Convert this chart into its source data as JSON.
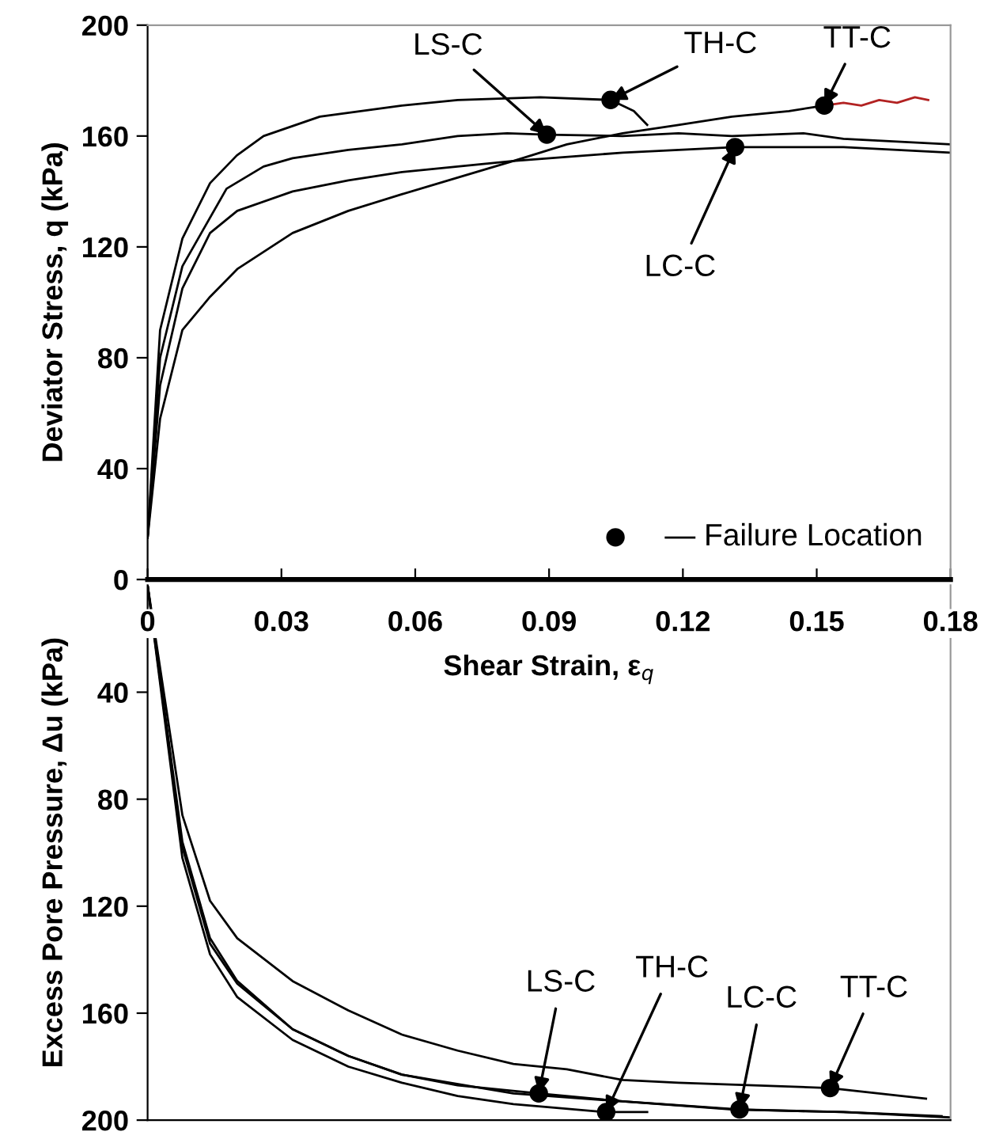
{
  "chart_data": [
    {
      "type": "line",
      "ylabel": "Deviator Stress, q (kPa)",
      "xlabel": "Shear Strain, ε$_{q}$",
      "xlim": [
        0,
        0.18
      ],
      "xticks": [
        0,
        0.03,
        0.06,
        0.09,
        0.12,
        0.15,
        0.18
      ],
      "ylim": [
        0,
        200
      ],
      "yticks": [
        0,
        40,
        80,
        120,
        160,
        200
      ],
      "grid": false,
      "legend": "bottom right",
      "series": [
        {
          "color": "#000000",
          "x": [
            0,
            0.0028,
            0.0078,
            0.014,
            0.02,
            0.026,
            0.0386,
            0.057,
            0.0695,
            0.088,
            0.1038,
            0.109,
            0.112
          ],
          "values": [
            15,
            90,
            123,
            143,
            153,
            160,
            167,
            171,
            173,
            174,
            173,
            169,
            164
          ]
        },
        {
          "color": "#000000",
          "x": [
            0,
            0.0028,
            0.0078,
            0.0177,
            0.026,
            0.0325,
            0.045,
            0.057,
            0.0695,
            0.0806,
            0.0895,
            0.1065,
            0.119,
            0.131,
            0.147,
            0.156,
            0.18
          ],
          "values": [
            15,
            80,
            113,
            141,
            149,
            152,
            155,
            157,
            160,
            161,
            160.5,
            160,
            161,
            160,
            161,
            159,
            157
          ]
        },
        {
          "color": "#000000",
          "x": [
            0,
            0.0028,
            0.0078,
            0.014,
            0.0201,
            0.0325,
            0.045,
            0.057,
            0.082,
            0.1065,
            0.1317,
            0.156,
            0.18
          ],
          "values": [
            15,
            70,
            105,
            125,
            133,
            140,
            144,
            147,
            151,
            154,
            156,
            156,
            154
          ]
        },
        {
          "color": "#000000",
          "x": [
            0,
            0.0028,
            0.0078,
            0.014,
            0.0201,
            0.0325,
            0.045,
            0.057,
            0.0695,
            0.082,
            0.094,
            0.1065,
            0.119,
            0.131,
            0.1438,
            0.1517
          ],
          "values": [
            15,
            58,
            90,
            102,
            112,
            125,
            133,
            139,
            145,
            151,
            157,
            161,
            164,
            167,
            169,
            171
          ]
        },
        {
          "color": "#b22222",
          "x": [
            0.1517,
            0.156,
            0.16,
            0.164,
            0.168,
            0.172,
            0.175
          ],
          "values": [
            171,
            172,
            171,
            173,
            172,
            174,
            173
          ]
        },
        {
          "type": "scatter",
          "name": "— Failure Location",
          "color": "#000000",
          "marker": "circle",
          "x": [
            0.0895,
            0.1038,
            0.1517,
            0.1317
          ],
          "values": [
            160.5,
            173,
            171,
            156
          ]
        }
      ],
      "annotations": [
        {
          "text": "LS-C",
          "x": 0.0895,
          "y": 160.5
        },
        {
          "text": "TH-C",
          "x": 0.1038,
          "y": 173
        },
        {
          "text": "TT-C",
          "x": 0.1517,
          "y": 171
        },
        {
          "text": "LC-C",
          "x": 0.1317,
          "y": 156
        }
      ]
    },
    {
      "type": "line",
      "ylabel": "Excess Pore Pressure, Δu (kPa)",
      "xlim": [
        0,
        0.18
      ],
      "ylim": [
        200,
        0
      ],
      "yticks": [
        40,
        80,
        120,
        160,
        200
      ],
      "tick_labels": "y",
      "grid": false,
      "series": [
        {
          "color": "#000000",
          "x": [
            0,
            0.0078,
            0.014,
            0.0201,
            0.0325,
            0.045,
            0.057,
            0.0695,
            0.082,
            0.094,
            0.1065,
            0.119,
            0.153,
            0.1745
          ],
          "values": [
            0,
            86,
            118,
            132,
            148,
            159,
            168,
            174,
            179,
            181,
            185,
            186,
            188,
            192
          ]
        },
        {
          "color": "#000000",
          "x": [
            0,
            0.0078,
            0.014,
            0.0201,
            0.0325,
            0.045,
            0.057,
            0.0695,
            0.082,
            0.1028,
            0.112
          ],
          "values": [
            0,
            102,
            138,
            154,
            170,
            180,
            186,
            191,
            194,
            197,
            197
          ]
        },
        {
          "color": "#000000",
          "x": [
            0,
            0.0078,
            0.014,
            0.0201,
            0.0325,
            0.045,
            0.057,
            0.0695,
            0.0877,
            0.1065,
            0.131,
            0.156,
            0.178
          ],
          "values": [
            0,
            96,
            132,
            148,
            166,
            176,
            183,
            187,
            190,
            193,
            196,
            197,
            198.5
          ]
        },
        {
          "color": "#000000",
          "x": [
            0,
            0.0078,
            0.014,
            0.0201,
            0.0325,
            0.045,
            0.057,
            0.082,
            0.1065,
            0.1327,
            0.156,
            0.18
          ],
          "values": [
            0,
            98,
            134,
            149,
            166,
            176,
            183,
            190,
            193,
            196,
            197,
            199
          ]
        },
        {
          "type": "scatter",
          "color": "#000000",
          "marker": "circle",
          "x": [
            0.0877,
            0.1028,
            0.1327,
            0.153
          ],
          "values": [
            190,
            197,
            196,
            188
          ]
        }
      ],
      "annotations": [
        {
          "text": "LS-C",
          "x": 0.0877,
          "y": 190
        },
        {
          "text": "TH-C",
          "x": 0.1028,
          "y": 197
        },
        {
          "text": "LC-C",
          "x": 0.1327,
          "y": 196
        },
        {
          "text": "TT-C",
          "x": 0.153,
          "y": 188
        }
      ]
    }
  ]
}
